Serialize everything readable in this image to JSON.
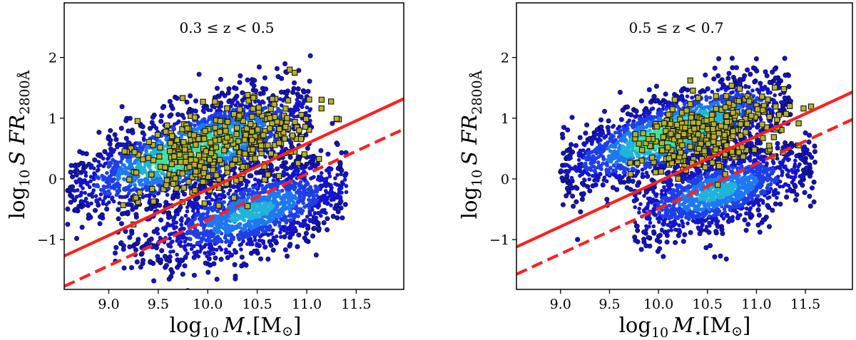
{
  "chart_data": [
    {
      "type": "scatter",
      "annotation": "0.3 ≤ z < 0.5",
      "xlabel": "log10 M⋆[M⊙]",
      "ylabel": "log10 SFR2800Å",
      "xlabel_parts": {
        "log": "log",
        "sub": "10",
        "var": "M",
        "star": "⋆",
        "unit": "[M",
        "sun": "⊙",
        "close": "]"
      },
      "ylabel_parts": {
        "log": "log",
        "sub": "10",
        "var": "S FR",
        "sub2": "2800Å"
      },
      "xlim": [
        8.55,
        11.98
      ],
      "ylim": [
        -1.82,
        2.9
      ],
      "xticks": [
        9.0,
        9.5,
        10.0,
        10.5,
        11.0,
        11.5
      ],
      "xtick_labels": [
        "9.0",
        "9.5",
        "10.0",
        "10.5",
        "11.0",
        "11.5"
      ],
      "yticks": [
        -1,
        0,
        1,
        2
      ],
      "ytick_labels": [
        "−1",
        "0",
        "1",
        "2"
      ],
      "lines": [
        {
          "name": "solid-separation",
          "style": "solid",
          "color": "#ff2020",
          "points": [
            [
              8.55,
              -1.27
            ],
            [
              11.98,
              1.32
            ]
          ]
        },
        {
          "name": "dashed-separation",
          "style": "dashed",
          "color": "#ff2020",
          "points": [
            [
              8.55,
              -1.77
            ],
            [
              11.98,
              0.82
            ]
          ]
        }
      ],
      "clouds": [
        {
          "name": "star-forming",
          "center": [
            9.85,
            0.45
          ],
          "slope": 0.65,
          "spread_along": 0.78,
          "spread_perp": 0.3,
          "count": 2200,
          "xrange": [
            8.58,
            11.05
          ]
        },
        {
          "name": "quiescent",
          "center": [
            10.45,
            -0.55
          ],
          "slope": 0.65,
          "spread_along": 0.62,
          "spread_perp": 0.28,
          "count": 1700,
          "xrange": [
            9.05,
            11.4
          ]
        }
      ],
      "squares": {
        "name": "yellow-square-sources",
        "center": [
          10.15,
          0.55
        ],
        "slope": 0.7,
        "spread_along": 0.55,
        "spread_perp": 0.32,
        "count": 340,
        "xrange": [
          9.1,
          11.4
        ],
        "seed": 11
      }
    },
    {
      "type": "scatter",
      "annotation": "0.5 ≤ z < 0.7",
      "xlabel": "log10 M⋆[M⊙]",
      "ylabel": "log10 SFR2800Å",
      "xlabel_parts": {
        "log": "log",
        "sub": "10",
        "var": "M",
        "star": "⋆",
        "unit": "[M",
        "sun": "⊙",
        "close": "]"
      },
      "ylabel_parts": {
        "log": "log",
        "sub": "10",
        "var": "S FR",
        "sub2": "2800Å"
      },
      "xlim": [
        8.55,
        11.98
      ],
      "ylim": [
        -1.82,
        2.9
      ],
      "xticks": [
        9.0,
        9.5,
        10.0,
        10.5,
        11.0,
        11.5
      ],
      "xtick_labels": [
        "9.0",
        "9.5",
        "10.0",
        "10.5",
        "11.0",
        "11.5"
      ],
      "yticks": [
        -1,
        0,
        1,
        2
      ],
      "ytick_labels": [
        "−1",
        "0",
        "1",
        "2"
      ],
      "lines": [
        {
          "name": "solid-separation",
          "style": "solid",
          "color": "#ff2020",
          "points": [
            [
              8.55,
              -1.12
            ],
            [
              11.98,
              1.43
            ]
          ]
        },
        {
          "name": "dashed-separation",
          "style": "dashed",
          "color": "#ff2020",
          "points": [
            [
              8.55,
              -1.57
            ],
            [
              11.98,
              0.98
            ]
          ]
        }
      ],
      "clouds": [
        {
          "name": "star-forming",
          "center": [
            10.15,
            0.75
          ],
          "slope": 0.65,
          "spread_along": 0.72,
          "spread_perp": 0.26,
          "count": 2100,
          "xrange": [
            9.0,
            11.35
          ]
        },
        {
          "name": "quiescent",
          "center": [
            10.6,
            -0.22
          ],
          "slope": 0.62,
          "spread_along": 0.55,
          "spread_perp": 0.26,
          "count": 1500,
          "xrange": [
            9.75,
            11.6
          ]
        }
      ],
      "squares": {
        "name": "yellow-square-sources",
        "center": [
          10.45,
          0.72
        ],
        "slope": 0.6,
        "spread_along": 0.42,
        "spread_perp": 0.26,
        "count": 300,
        "xrange": [
          9.7,
          11.6
        ],
        "seed": 29
      }
    }
  ]
}
